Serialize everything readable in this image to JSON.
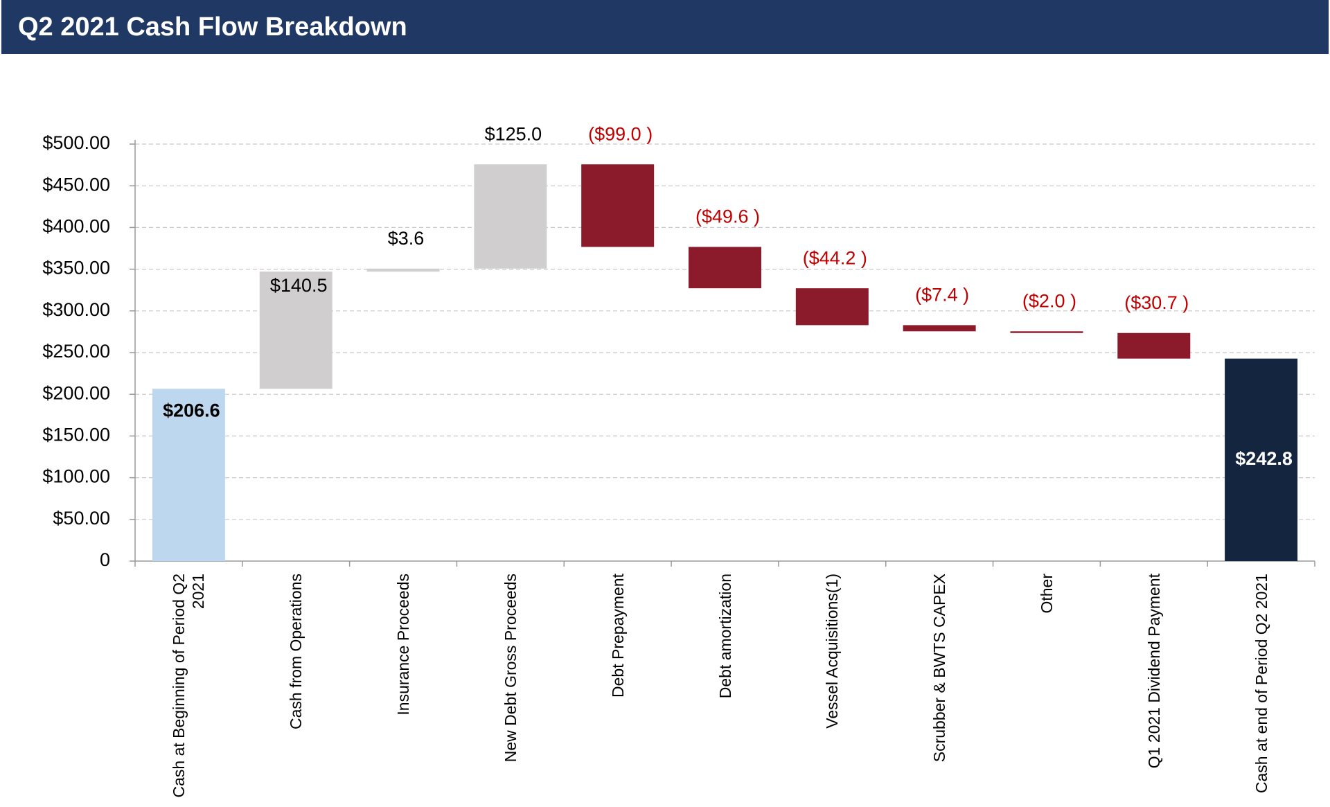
{
  "chart_data": {
    "type": "waterfall",
    "title": "Q2 2021 Cash Flow Breakdown",
    "categories": [
      "Cash at Beginning of Period Q2 2021",
      "Cash from Operations",
      "Insurance Proceeds",
      "New Debt Gross Proceeds",
      "Debt Prepayment",
      "Debt amortization",
      "Vessel Acquisitions(1)",
      "Scrubber & BWTS CAPEX",
      "Other",
      "Q1 2021 Dividend Payment",
      "Cash at end of Period Q2 2021"
    ],
    "values": [
      206.6,
      140.5,
      3.6,
      125.0,
      -99.0,
      -49.6,
      -44.2,
      -7.4,
      -2.0,
      -30.7,
      242.8
    ],
    "value_labels": [
      "$206.6",
      "$140.5",
      "$3.6",
      "$125.0",
      "($99.0 )",
      "($49.6 )",
      "($44.2 )",
      "($7.4 )",
      "($2.0 )",
      "($30.7 )",
      "$242.8"
    ],
    "measure": [
      "absolute",
      "relative",
      "relative",
      "relative",
      "relative",
      "relative",
      "relative",
      "relative",
      "relative",
      "relative",
      "total"
    ],
    "colors": [
      "#bdd7ee",
      "#d0cece",
      "#d0cece",
      "#d0cece",
      "#8b1a2a",
      "#8b1a2a",
      "#8b1a2a",
      "#8b1a2a",
      "#8b1a2a",
      "#8b1a2a",
      "#14253f"
    ],
    "ylim": [
      0,
      500
    ],
    "yticks": [
      0,
      {
        "value": 50,
        "label": "$50.00"
      },
      {
        "value": 100,
        "label": "$100.00"
      },
      {
        "value": 150,
        "label": "$150.00"
      },
      {
        "value": 200,
        "label": "$200.00"
      },
      {
        "value": 250,
        "label": "$250.00"
      },
      {
        "value": 300,
        "label": "$300.00"
      },
      {
        "value": 350,
        "label": "$350.00"
      },
      {
        "value": 400,
        "label": "$400.00"
      },
      {
        "value": 450,
        "label": "$450.00"
      },
      {
        "value": 500,
        "label": "$500.00"
      }
    ],
    "grid": true
  }
}
